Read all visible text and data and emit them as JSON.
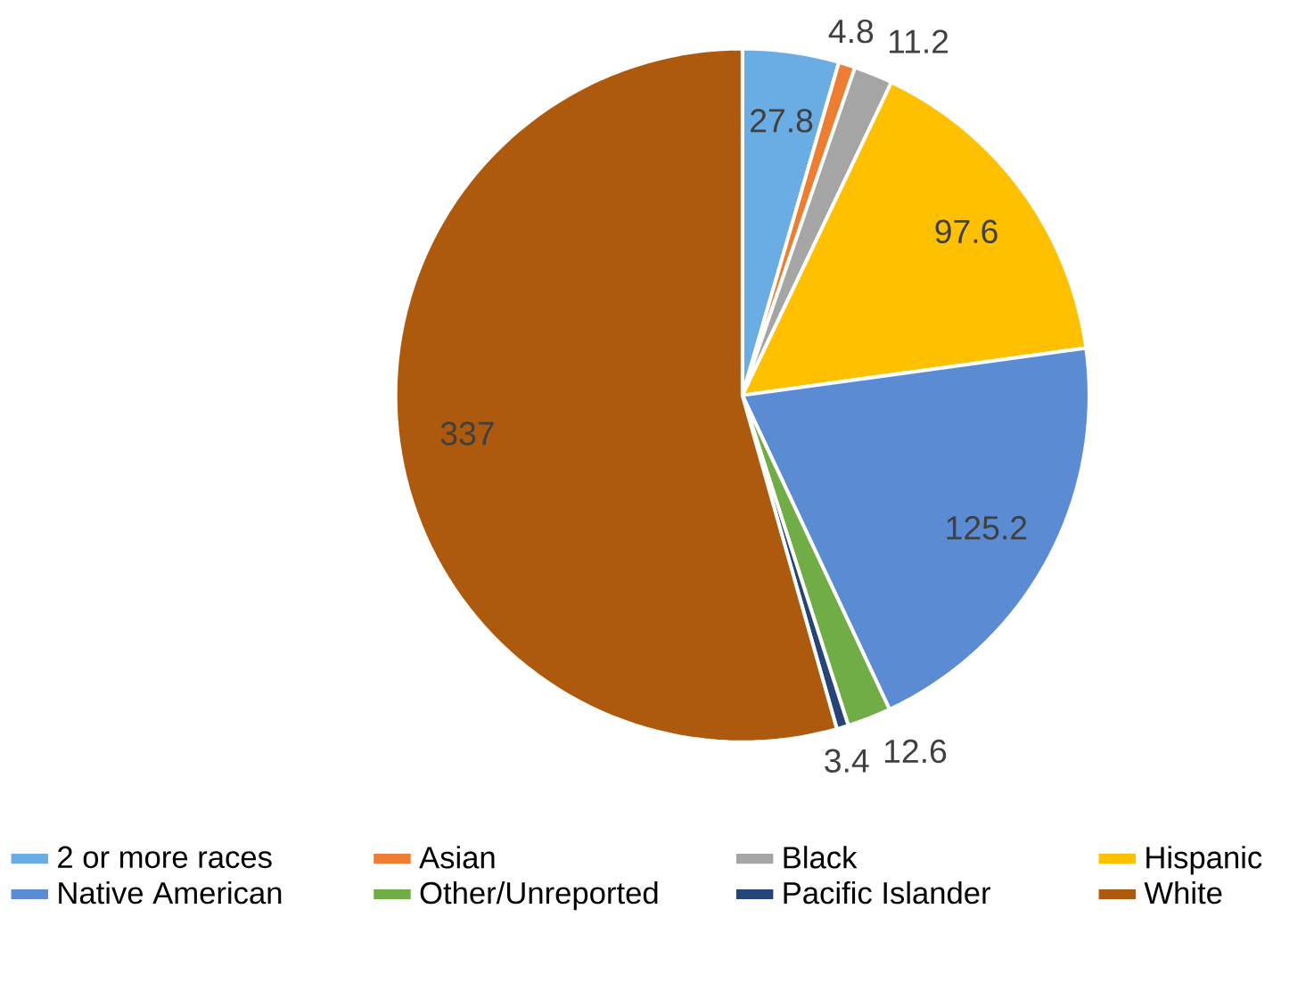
{
  "chart_data": {
    "type": "pie",
    "categories": [
      "2 or more races",
      "Asian",
      "Black",
      "Hispanic",
      "Native American",
      "Other/Unreported",
      "Pacific Islander",
      "White"
    ],
    "values": [
      27.8,
      4.8,
      11.2,
      97.6,
      125.2,
      12.6,
      3.4,
      337
    ],
    "colors": [
      "#6aade4",
      "#ed7d31",
      "#a5a5a5",
      "#ffc000",
      "#5b8bd2",
      "#70ad47",
      "#264478",
      "#ae5a0e"
    ],
    "data_labels": true,
    "legend": "bottom"
  }
}
